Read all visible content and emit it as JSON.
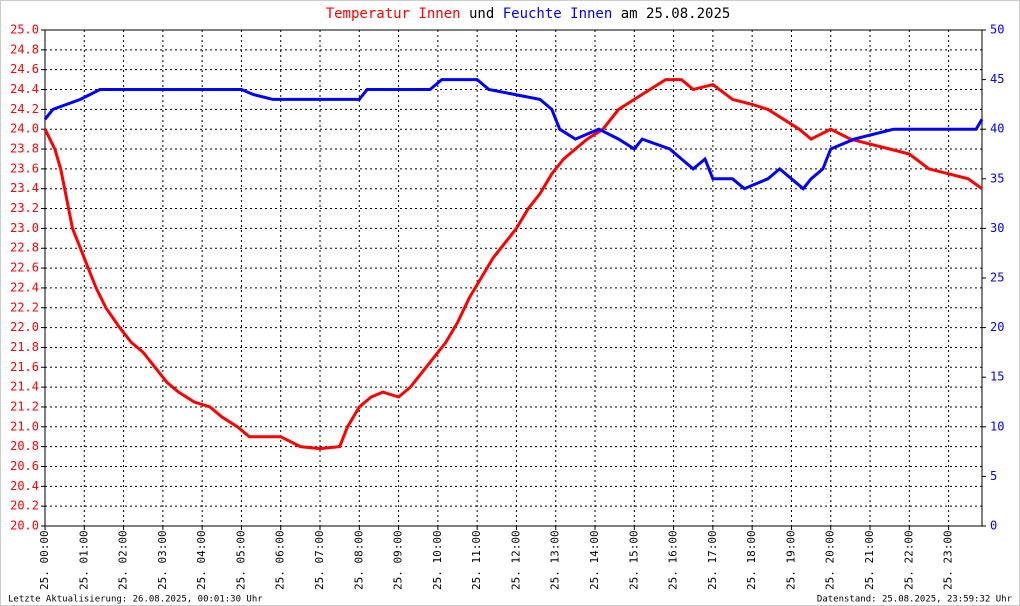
{
  "chart_data": {
    "type": "line",
    "title_connector": "und",
    "title_date": "am 25.08.2025",
    "footer_left": "Letzte Aktualisierung: 26.08.2025, 00:01:30 Uhr",
    "footer_right": "Datenstand: 25.08.2025, 23:59:32 Uhr",
    "grid": true,
    "xlim": [
      0,
      23.85
    ],
    "xticks": [
      {
        "value": 0,
        "label": "25. 00:00"
      },
      {
        "value": 1,
        "label": "25. 01:00"
      },
      {
        "value": 2,
        "label": "25. 02:00"
      },
      {
        "value": 3,
        "label": "25. 03:00"
      },
      {
        "value": 4,
        "label": "25. 04:00"
      },
      {
        "value": 5,
        "label": "25. 05:00"
      },
      {
        "value": 6,
        "label": "25. 06:00"
      },
      {
        "value": 7,
        "label": "25. 07:00"
      },
      {
        "value": 8,
        "label": "25. 08:00"
      },
      {
        "value": 9,
        "label": "25. 09:00"
      },
      {
        "value": 10,
        "label": "25. 10:00"
      },
      {
        "value": 11,
        "label": "25. 11:00"
      },
      {
        "value": 12,
        "label": "25. 12:00"
      },
      {
        "value": 13,
        "label": "25. 13:00"
      },
      {
        "value": 14,
        "label": "25. 14:00"
      },
      {
        "value": 15,
        "label": "25. 15:00"
      },
      {
        "value": 16,
        "label": "25. 16:00"
      },
      {
        "value": 17,
        "label": "25. 17:00"
      },
      {
        "value": 18,
        "label": "25. 18:00"
      },
      {
        "value": 19,
        "label": "25. 19:00"
      },
      {
        "value": 20,
        "label": "25. 20:00"
      },
      {
        "value": 21,
        "label": "25. 21:00"
      },
      {
        "value": 22,
        "label": "25. 22:00"
      },
      {
        "value": 23,
        "label": "25. 23:00"
      }
    ],
    "ylim": [
      20,
      25
    ],
    "yticks": [
      {
        "value": 20,
        "label": "20.0"
      },
      20.2,
      20.4,
      20.6,
      20.8,
      {
        "value": 21,
        "label": "21.0"
      },
      21.2,
      21.4,
      21.6,
      21.8,
      {
        "value": 22,
        "label": "22.0"
      },
      22.2,
      22.4,
      22.6,
      22.8,
      {
        "value": 23,
        "label": "23.0"
      },
      23.2,
      23.4,
      23.6,
      23.8,
      {
        "value": 24,
        "label": "24.0"
      },
      24.2,
      24.4,
      24.6,
      24.8,
      {
        "value": 25,
        "label": "25.0"
      }
    ],
    "y2lim": [
      0,
      50
    ],
    "y2ticks": [
      0,
      5,
      10,
      15,
      20,
      25,
      30,
      35,
      40,
      45,
      50
    ],
    "series": [
      {
        "name": "Temperatur Innen",
        "color": "#ff0000",
        "x": [
          0,
          0.25,
          0.4,
          0.55,
          0.7,
          0.9,
          1.1,
          1.3,
          1.55,
          1.9,
          2.2,
          2.5,
          2.8,
          3.1,
          3.4,
          3.8,
          4.2,
          4.5,
          4.9,
          5.2,
          6.0,
          6.5,
          7.0,
          7.5,
          7.7,
          8.0,
          8.3,
          8.6,
          9.0,
          9.3,
          9.6,
          9.9,
          10.2,
          10.5,
          10.8,
          11.1,
          11.4,
          11.7,
          12.0,
          12.3,
          12.6,
          12.9,
          13.2,
          13.5,
          13.8,
          14.2,
          14.6,
          15.0,
          15.4,
          15.8,
          16.2,
          16.5,
          17.0,
          17.5,
          18.0,
          18.4,
          18.8,
          19.2,
          19.5,
          20.0,
          20.5,
          21.0,
          21.5,
          22.0,
          22.5,
          23.0,
          23.5,
          23.85
        ],
        "values": [
          24.0,
          23.8,
          23.6,
          23.3,
          23.0,
          22.8,
          22.6,
          22.4,
          22.2,
          22.0,
          21.85,
          21.75,
          21.6,
          21.45,
          21.35,
          21.25,
          21.2,
          21.1,
          21.0,
          20.9,
          20.9,
          20.8,
          20.78,
          20.8,
          21.0,
          21.2,
          21.3,
          21.35,
          21.3,
          21.4,
          21.55,
          21.7,
          21.85,
          22.05,
          22.3,
          22.5,
          22.7,
          22.85,
          23.0,
          23.2,
          23.35,
          23.55,
          23.7,
          23.8,
          23.9,
          24.0,
          24.2,
          24.3,
          24.4,
          24.5,
          24.5,
          24.4,
          24.45,
          24.3,
          24.25,
          24.2,
          24.1,
          24.0,
          23.9,
          24.0,
          23.9,
          23.85,
          23.8,
          23.75,
          23.6,
          23.55,
          23.5,
          23.4
        ]
      },
      {
        "name": "Feuchte Innen",
        "color": "#0000ff",
        "axis": "y2",
        "x": [
          0,
          0.2,
          0.9,
          1.4,
          5.0,
          5.3,
          5.8,
          8.0,
          8.2,
          9.8,
          10.1,
          11.0,
          11.3,
          12.6,
          12.9,
          13.1,
          13.5,
          14.1,
          14.6,
          15.0,
          15.2,
          15.9,
          16.2,
          16.5,
          16.8,
          17.0,
          17.5,
          17.8,
          18.4,
          18.7,
          19.0,
          19.3,
          19.5,
          19.8,
          20.0,
          20.6,
          21.6,
          23.7,
          23.85
        ],
        "values": [
          41,
          42,
          43,
          44,
          44,
          43.5,
          43,
          43,
          44,
          44,
          45,
          45,
          44,
          43,
          42,
          40,
          39,
          40,
          39,
          38,
          39,
          38,
          37,
          36,
          37,
          35,
          35,
          34,
          35,
          36,
          35,
          34,
          35,
          36,
          38,
          39,
          40,
          40,
          41
        ]
      }
    ]
  }
}
